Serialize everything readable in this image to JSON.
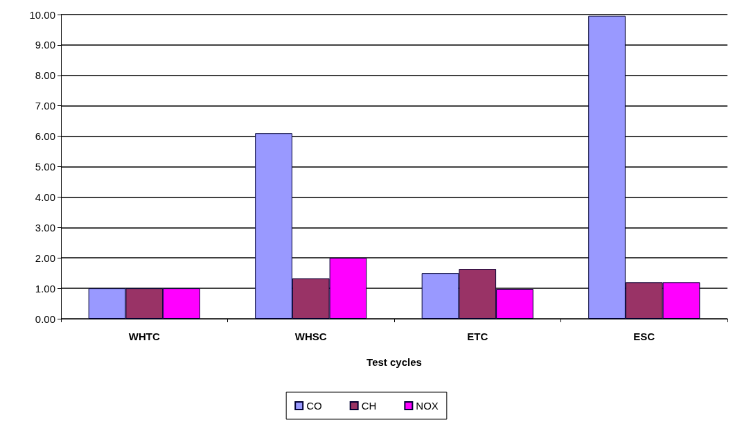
{
  "chart_data": {
    "type": "bar",
    "xlabel": "Test cycles",
    "categories": [
      "WHTC",
      "WHSC",
      "ETC",
      "ESC"
    ],
    "series": [
      {
        "name": "CO",
        "color": "#9999ff",
        "values": [
          1.0,
          6.1,
          1.5,
          9.96
        ]
      },
      {
        "name": "CH",
        "color": "#993366",
        "values": [
          1.0,
          1.33,
          1.64,
          1.2
        ]
      },
      {
        "name": "NOX",
        "color": "#ff00ff",
        "values": [
          1.0,
          2.0,
          0.98,
          1.2
        ]
      }
    ],
    "ylim": [
      0,
      10
    ],
    "yticks": [
      {
        "value": 0,
        "label": "0.00"
      },
      {
        "value": 1,
        "label": "1.00"
      },
      {
        "value": 2,
        "label": "2.00"
      },
      {
        "value": 3,
        "label": "3.00"
      },
      {
        "value": 4,
        "label": "4.00"
      },
      {
        "value": 5,
        "label": "5.00"
      },
      {
        "value": 6,
        "label": "6.00"
      },
      {
        "value": 7,
        "label": "7.00"
      },
      {
        "value": 8,
        "label": "8.00"
      },
      {
        "value": 9,
        "label": "9.00"
      },
      {
        "value": 10,
        "label": "10.00"
      }
    ],
    "grid": true,
    "legend": "bottom"
  }
}
